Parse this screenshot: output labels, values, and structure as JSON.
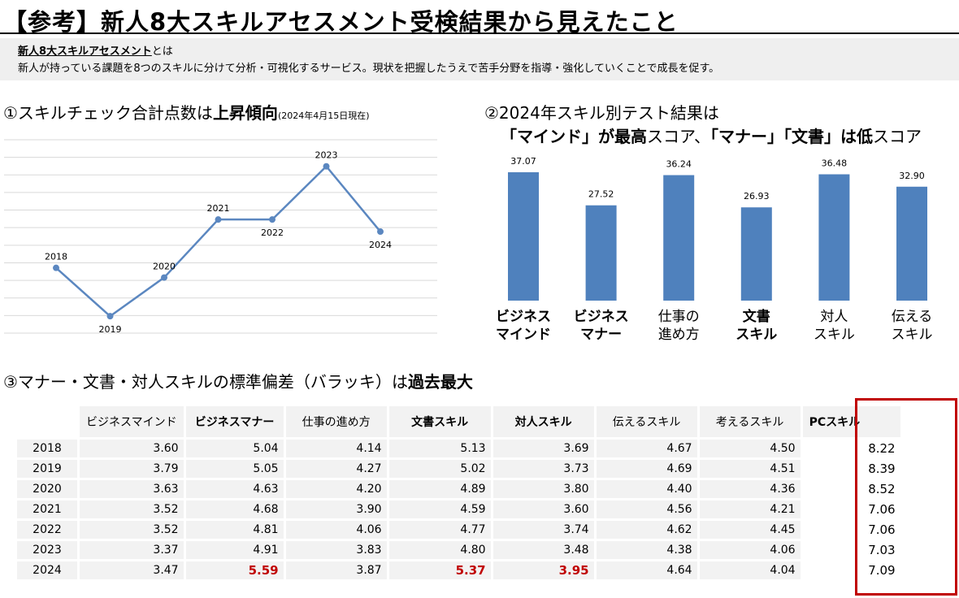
{
  "title": "【参考】新人8大スキルアセスメント受検結果から見えたこと",
  "intro": {
    "name": "新人8大スキルアセスメント",
    "name_suffix": "とは",
    "body": "新人が持っている課題を8つのスキルに分けて分析・可視化するサービス。現状を把握したうえで苦手分野を指導・強化していくことで成長を促す。"
  },
  "section1": {
    "prefix": "①スキルチェック合計点数は",
    "bold": "上昇傾向",
    "sub": "(2024年4月15日現在)"
  },
  "section2": {
    "line1": "②2024年スキル別テスト結果は",
    "q1": "「マインド」",
    "t1": "が",
    "bold1": "最高",
    "t2": "スコア、",
    "q2": "「マナー」「文書」",
    "t3": "は",
    "bold2": "低",
    "t4": "スコア"
  },
  "section3": {
    "prefix": "③マナー・文書・対人スキルの",
    "mid": "標準偏差（バラッキ）",
    "suffix": "は",
    "bold": "過去最大"
  },
  "chart_data": [
    {
      "type": "line",
      "x": [
        "2018",
        "2019",
        "2020",
        "2021",
        "2022",
        "2023",
        "2024"
      ],
      "values": [
        53.5,
        43.5,
        51.5,
        63.5,
        63.5,
        74.5,
        61
      ],
      "ylim": [
        40,
        80
      ],
      "grid": true,
      "color": "#5b87c0"
    },
    {
      "type": "bar",
      "categories": [
        {
          "lines": [
            "ビジネス",
            "マインド"
          ],
          "bold": true
        },
        {
          "lines": [
            "ビジネス",
            "マナー"
          ],
          "bold": true
        },
        {
          "lines": [
            "仕事の",
            "進め方"
          ],
          "bold": false
        },
        {
          "lines": [
            "文書",
            "スキル"
          ],
          "bold": true
        },
        {
          "lines": [
            "対人",
            "スキル"
          ],
          "bold": false
        },
        {
          "lines": [
            "伝える",
            "スキル"
          ],
          "bold": false
        }
      ],
      "values": [
        37.07,
        27.52,
        36.24,
        26.93,
        36.48,
        32.9
      ],
      "labels": [
        "37.07",
        "27.52",
        "36.24",
        "26.93",
        "36.48",
        "32.90"
      ],
      "ylim": [
        0,
        40
      ],
      "color": "#4f81bd"
    }
  ],
  "table": {
    "headers": [
      {
        "text": "ビジネスマインド",
        "bold": false
      },
      {
        "text": "ビジネスマナー",
        "bold": true
      },
      {
        "text": "仕事の進め方",
        "bold": false
      },
      {
        "text": "文書スキル",
        "bold": true
      },
      {
        "text": "対人スキル",
        "bold": true
      },
      {
        "text": "伝えるスキル",
        "bold": false
      },
      {
        "text": "考えるスキル",
        "bold": false
      },
      {
        "text": "PCスキル",
        "bold": true
      }
    ],
    "rows": [
      {
        "year": "2018",
        "values": [
          "3.60",
          "5.04",
          "4.14",
          "5.13",
          "3.69",
          "4.67",
          "4.50",
          "8.22"
        ]
      },
      {
        "year": "2019",
        "values": [
          "3.79",
          "5.05",
          "4.27",
          "5.02",
          "3.73",
          "4.69",
          "4.51",
          "8.39"
        ]
      },
      {
        "year": "2020",
        "values": [
          "3.63",
          "4.63",
          "4.20",
          "4.89",
          "3.80",
          "4.40",
          "4.36",
          "8.52"
        ]
      },
      {
        "year": "2021",
        "values": [
          "3.52",
          "4.68",
          "3.90",
          "4.59",
          "3.60",
          "4.56",
          "4.21",
          "7.06"
        ]
      },
      {
        "year": "2022",
        "values": [
          "3.52",
          "4.81",
          "4.06",
          "4.77",
          "3.74",
          "4.62",
          "4.45",
          "7.06"
        ]
      },
      {
        "year": "2023",
        "values": [
          "3.37",
          "4.91",
          "3.83",
          "4.80",
          "3.48",
          "4.38",
          "4.06",
          "7.03"
        ]
      },
      {
        "year": "2024",
        "values": [
          "3.47",
          "5.59",
          "3.87",
          "5.37",
          "3.95",
          "4.64",
          "4.04",
          "7.09"
        ],
        "red": [
          1,
          3,
          4
        ]
      }
    ],
    "highlight_color": "#c00000"
  }
}
